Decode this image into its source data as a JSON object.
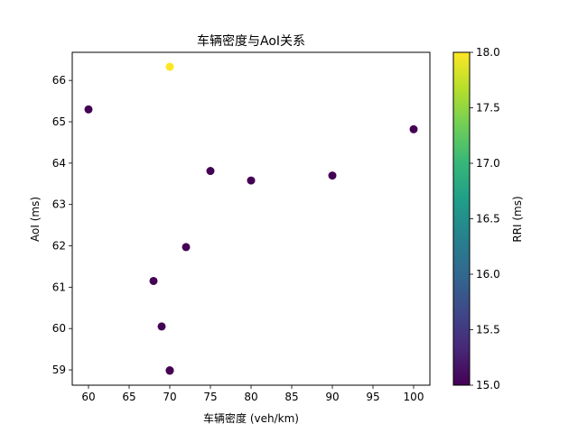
{
  "chart_data": {
    "type": "scatter",
    "title": "车辆密度与AoI关系",
    "xlabel": "车辆密度 (veh/km)",
    "ylabel": "AoI (ms)",
    "xlim": [
      58.0,
      102.0
    ],
    "ylim": [
      58.63,
      66.68
    ],
    "xticks": [
      60,
      65,
      70,
      75,
      80,
      85,
      90,
      95,
      100
    ],
    "yticks": [
      59,
      60,
      61,
      62,
      63,
      64,
      65,
      66
    ],
    "points": [
      {
        "x": 60,
        "y": 65.3,
        "c": 15.0
      },
      {
        "x": 70,
        "y": 66.33,
        "c": 18.0
      },
      {
        "x": 100,
        "y": 64.82,
        "c": 15.0
      },
      {
        "x": 75,
        "y": 63.81,
        "c": 15.0
      },
      {
        "x": 80,
        "y": 63.58,
        "c": 15.0
      },
      {
        "x": 90,
        "y": 63.7,
        "c": 15.0
      },
      {
        "x": 72,
        "y": 61.97,
        "c": 15.0
      },
      {
        "x": 68,
        "y": 61.15,
        "c": 15.0
      },
      {
        "x": 69,
        "y": 60.05,
        "c": 15.0
      },
      {
        "x": 70,
        "y": 58.98,
        "c": 15.0
      },
      {
        "x": 70,
        "y": 58.99,
        "c": 15.0
      }
    ],
    "colorbar": {
      "label": "RRI (ms)",
      "min": 15.0,
      "max": 18.0,
      "ticks": [
        "15.0",
        "15.5",
        "16.0",
        "16.5",
        "17.0",
        "17.5",
        "18.0"
      ],
      "colormap": "viridis",
      "stops": [
        "#440154",
        "#482878",
        "#3e4989",
        "#31688e",
        "#26828e",
        "#1f9e89",
        "#35b779",
        "#6ece58",
        "#b5de2b",
        "#fde725"
      ]
    }
  }
}
